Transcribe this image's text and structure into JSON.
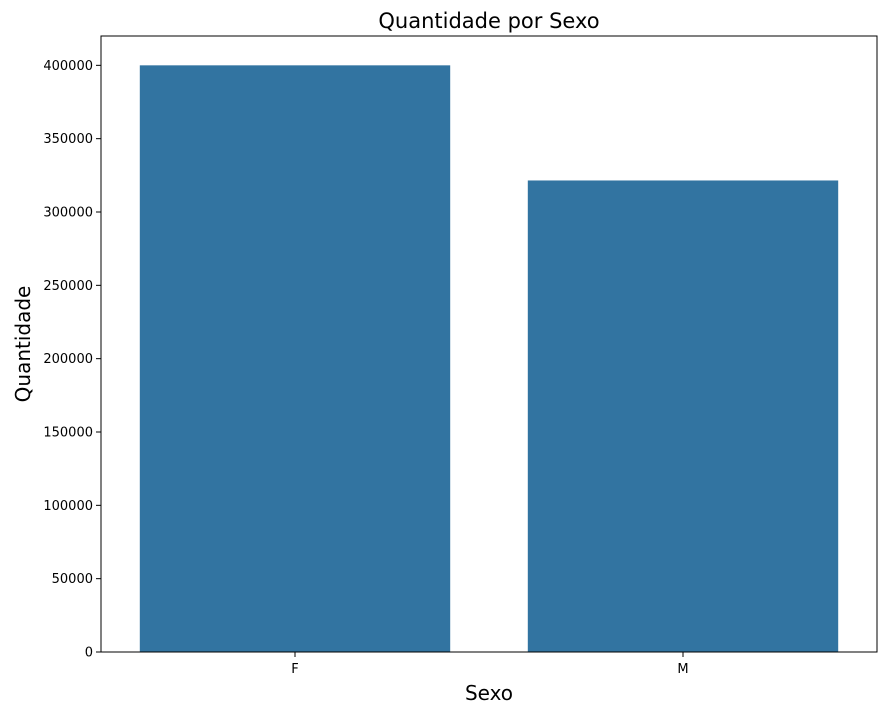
{
  "chart_data": {
    "type": "bar",
    "title": "Quantidade por Sexo",
    "xlabel": "Sexo",
    "ylabel": "Quantidade",
    "categories": [
      "F",
      "M"
    ],
    "values": [
      400000,
      321500
    ],
    "ylim": [
      0,
      420000
    ],
    "yticks": [
      0,
      50000,
      100000,
      150000,
      200000,
      250000,
      300000,
      350000,
      400000
    ],
    "ytick_labels": [
      "0",
      "50000",
      "100000",
      "150000",
      "200000",
      "250000",
      "300000",
      "350000",
      "400000"
    ],
    "bar_color": "#3274a1",
    "grid": false,
    "legend": "none"
  }
}
